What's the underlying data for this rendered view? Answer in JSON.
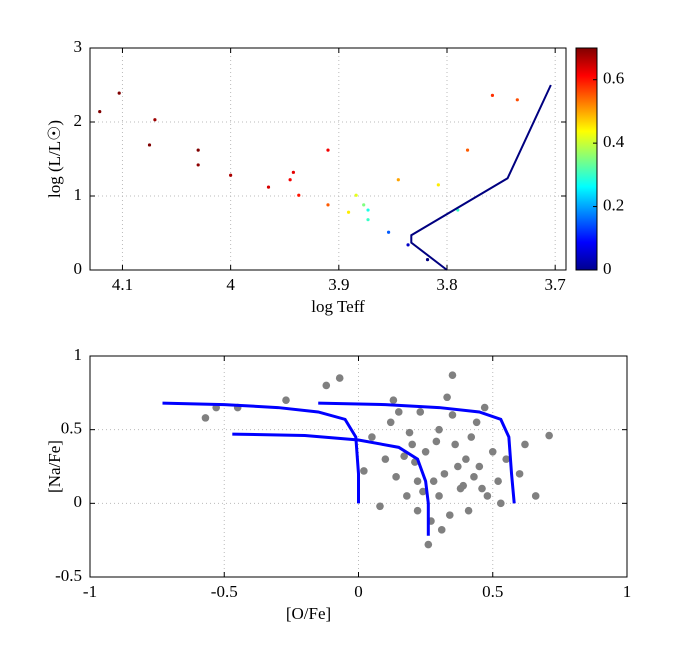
{
  "chart_data": [
    {
      "type": "scatter",
      "xlabel": "log Teff",
      "ylabel": "log (L/L☉)",
      "xlim": [
        4.13,
        3.69
      ],
      "ylim": [
        0,
        3
      ],
      "xticks": [
        4.1,
        4,
        3.9,
        3.8,
        3.7
      ],
      "yticks": [
        0,
        1,
        2,
        3
      ],
      "grid": true,
      "colormap": "jet",
      "clim": [
        0,
        0.7
      ],
      "cticks": [
        0,
        0.2,
        0.4,
        0.6
      ],
      "series": [
        {
          "kind": "scatter",
          "x": [
            4.121,
            4.075,
            4.03,
            4.0,
            3.965,
            3.937,
            3.91,
            3.891,
            3.873,
            3.854,
            3.836,
            3.818,
            4.03,
            3.945,
            3.942,
            3.884,
            3.877,
            3.873,
            4.103,
            4.07,
            3.91,
            3.845,
            3.808,
            3.781,
            3.758,
            3.735,
            3.79
          ],
          "y": [
            2.14,
            1.69,
            1.42,
            1.28,
            1.12,
            1.01,
            0.88,
            0.78,
            0.68,
            0.51,
            0.34,
            0.14,
            1.62,
            1.22,
            1.32,
            1.01,
            0.88,
            0.81,
            2.39,
            2.03,
            1.62,
            1.22,
            1.15,
            1.62,
            2.36,
            2.3,
            0.81
          ],
          "c": [
            0.7,
            0.7,
            0.69,
            0.67,
            0.64,
            0.6,
            0.55,
            0.45,
            0.3,
            0.15,
            0.05,
            0.0,
            0.7,
            0.62,
            0.63,
            0.42,
            0.35,
            0.28,
            0.7,
            0.68,
            0.62,
            0.5,
            0.45,
            0.55,
            0.58,
            0.56,
            0.3
          ]
        },
        {
          "kind": "line",
          "color": "#000080",
          "x": [
            3.8,
            3.833,
            3.833,
            3.744,
            3.704
          ],
          "y": [
            0,
            0.37,
            0.47,
            1.24,
            2.5
          ]
        }
      ]
    },
    {
      "type": "scatter",
      "xlabel": "[O/Fe]",
      "ylabel": "[Na/Fe]",
      "xlim": [
        -1,
        1
      ],
      "ylim": [
        -0.5,
        1
      ],
      "xticks": [
        -1,
        -0.5,
        0,
        0.5,
        1
      ],
      "yticks": [
        -0.5,
        0,
        0.5,
        1
      ],
      "grid": true,
      "series": [
        {
          "kind": "scatter",
          "color": "#808080",
          "x": [
            -0.57,
            -0.53,
            -0.45,
            -0.27,
            0.71,
            0.66,
            -0.12,
            -0.07,
            0.05,
            0.1,
            0.12,
            0.15,
            0.18,
            0.2,
            0.22,
            0.25,
            0.28,
            0.3,
            0.32,
            0.35,
            0.38,
            0.4,
            0.42,
            0.45,
            0.48,
            0.5,
            0.52,
            0.55,
            0.6,
            0.62,
            0.08,
            0.14,
            0.19,
            0.23,
            0.27,
            0.33,
            0.36,
            0.41,
            0.44,
            0.47,
            0.21,
            0.29,
            0.37,
            0.24,
            0.31,
            0.39,
            0.17,
            0.13,
            0.43,
            0.35,
            0.02,
            0.26,
            0.3,
            0.46,
            0.53,
            0.22,
            0.34
          ],
          "y": [
            0.58,
            0.65,
            0.65,
            0.7,
            0.46,
            0.05,
            0.8,
            0.85,
            0.45,
            0.3,
            0.55,
            0.62,
            0.05,
            0.4,
            -0.05,
            0.35,
            0.15,
            0.5,
            0.2,
            0.6,
            0.1,
            0.3,
            0.45,
            0.25,
            0.05,
            0.35,
            0.15,
            0.3,
            0.2,
            0.4,
            -0.02,
            0.18,
            0.48,
            0.62,
            -0.12,
            0.72,
            0.4,
            -0.05,
            0.55,
            0.65,
            0.28,
            0.42,
            0.25,
            0.08,
            -0.18,
            0.12,
            0.32,
            0.7,
            0.18,
            0.87,
            0.22,
            -0.28,
            0.05,
            0.1,
            0.0,
            0.15,
            -0.08
          ]
        },
        {
          "kind": "line",
          "color": "#0000ff",
          "x": [
            -0.73,
            -0.5,
            -0.3,
            -0.15,
            -0.05,
            -0.01,
            0,
            0
          ],
          "y": [
            0.68,
            0.67,
            0.65,
            0.62,
            0.57,
            0.45,
            0.2,
            0
          ]
        },
        {
          "kind": "line",
          "color": "#0000ff",
          "x": [
            -0.47,
            -0.2,
            0,
            0.15,
            0.22,
            0.25,
            0.26,
            0.26
          ],
          "y": [
            0.47,
            0.46,
            0.43,
            0.38,
            0.3,
            0.15,
            0,
            -0.22
          ]
        },
        {
          "kind": "line",
          "color": "#0000ff",
          "x": [
            -0.15,
            0.1,
            0.3,
            0.45,
            0.53,
            0.56,
            0.57,
            0.58
          ],
          "y": [
            0.68,
            0.67,
            0.65,
            0.62,
            0.57,
            0.45,
            0.2,
            0
          ]
        }
      ]
    }
  ]
}
